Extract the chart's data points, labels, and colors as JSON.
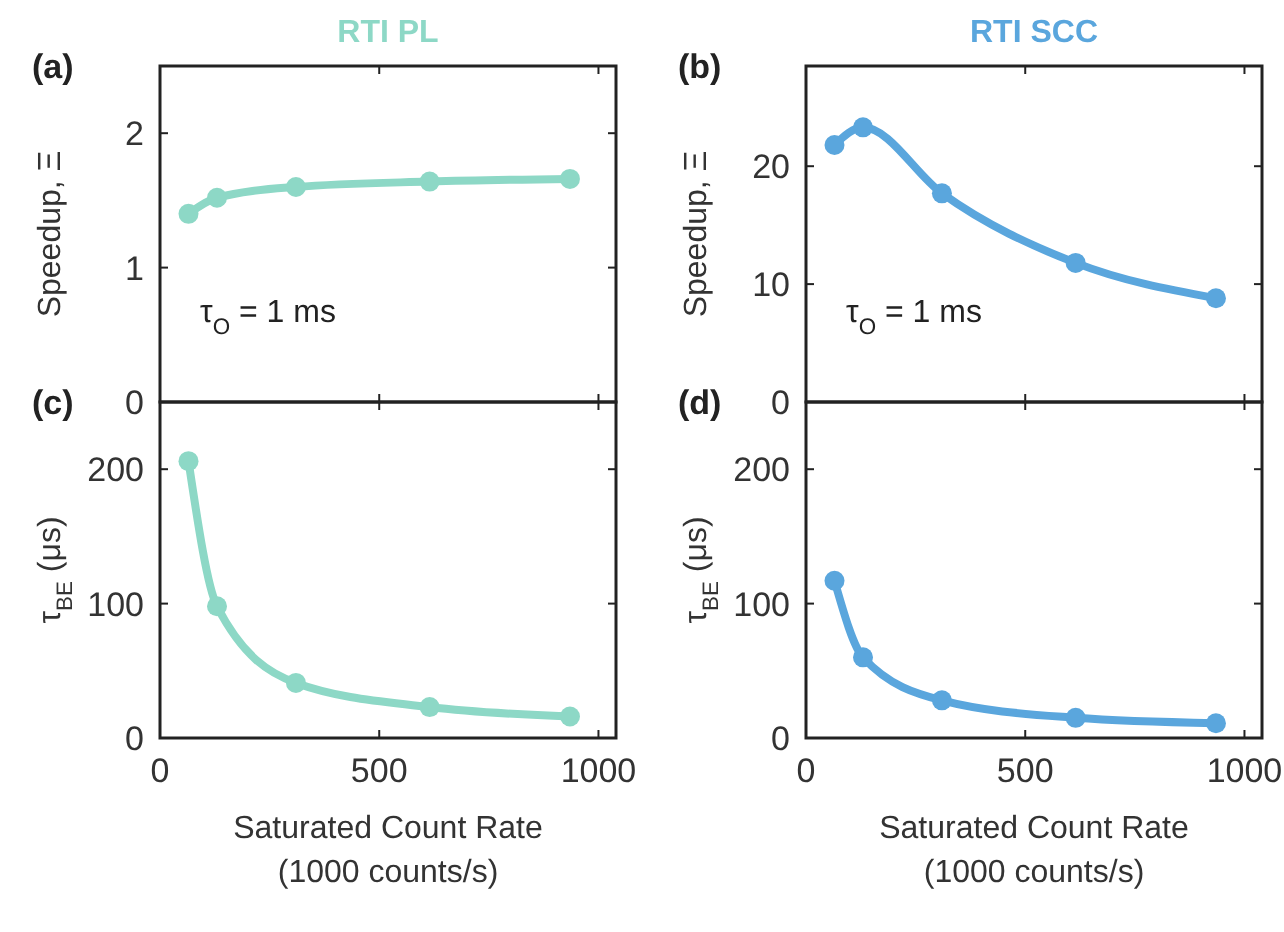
{
  "chart_data": [
    {
      "type": "line",
      "title": "RTI PL",
      "ylabel": "Speedup, Ξ",
      "annotations": [
        "(a)",
        "τ$_{O}$ = 1 ms"
      ],
      "x": [
        65,
        130,
        310,
        615,
        935
      ],
      "series": [
        {
          "color": "#8dd8c6",
          "values": [
            1.4,
            1.52,
            1.6,
            1.64,
            1.66
          ]
        }
      ],
      "xlim": [
        0,
        1040
      ],
      "xticks": [
        0,
        500,
        1000
      ],
      "ylim": [
        0,
        2.5
      ],
      "yticks": [
        0,
        1,
        2
      ],
      "tick_labels": "y",
      "marker": "circle",
      "line_style": "solid",
      "grid": false
    },
    {
      "type": "line",
      "title": "RTI SCC",
      "ylabel": "Speedup, Ξ",
      "annotations": [
        "(b)",
        "τ$_{O}$ = 1 ms"
      ],
      "x": [
        65,
        130,
        310,
        615,
        935
      ],
      "series": [
        {
          "color": "#5aa6dd",
          "values": [
            21.8,
            23.3,
            17.7,
            11.8,
            8.8
          ]
        }
      ],
      "xlim": [
        0,
        1040
      ],
      "xticks": [
        0,
        500,
        1000
      ],
      "ylim": [
        0,
        28.5
      ],
      "yticks": [
        0,
        10,
        20
      ],
      "tick_labels": "y",
      "marker": "circle",
      "line_style": "solid",
      "grid": false
    },
    {
      "type": "line",
      "xlabel": "Saturated Count Rate\n(1000 counts/s)",
      "ylabel": "τ$_{BE}$ (μs)",
      "annotations": [
        "(c)"
      ],
      "x": [
        65,
        130,
        310,
        615,
        935
      ],
      "series": [
        {
          "color": "#8dd8c6",
          "values": [
            206,
            98,
            41,
            23,
            16
          ]
        }
      ],
      "xlim": [
        0,
        1040
      ],
      "xticks": [
        0,
        500,
        1000
      ],
      "ylim": [
        0,
        250
      ],
      "yticks": [
        0,
        100,
        200
      ],
      "marker": "circle",
      "line_style": "solid",
      "grid": false
    },
    {
      "type": "line",
      "xlabel": "Saturated Count Rate\n(1000 counts/s)",
      "ylabel": "τ$_{BE}$ (μs)",
      "annotations": [
        "(d)"
      ],
      "x": [
        65,
        130,
        310,
        615,
        935
      ],
      "series": [
        {
          "color": "#5aa6dd",
          "values": [
            117,
            60,
            28,
            15,
            11
          ]
        }
      ],
      "xlim": [
        0,
        1040
      ],
      "xticks": [
        0,
        500,
        1000
      ],
      "ylim": [
        0,
        250
      ],
      "yticks": [
        0,
        100,
        200
      ],
      "marker": "circle",
      "line_style": "solid",
      "grid": false
    }
  ]
}
